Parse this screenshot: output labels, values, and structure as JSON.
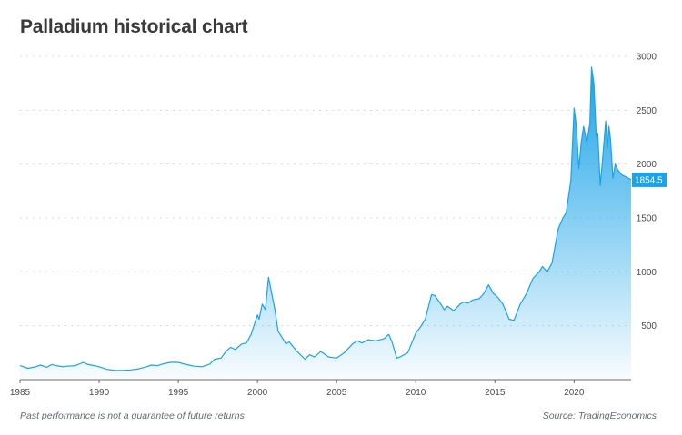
{
  "header": {
    "title": "Palladium historical chart"
  },
  "footer": {
    "disclaimer": "Past performance is not a guarantee of future returns",
    "source": "Source: TradingEconomics"
  },
  "colors": {
    "line": "#1aa3e8",
    "fill_top": "#1aa3e8",
    "grid": "#d5d8dc",
    "axis": "#6c6c6c",
    "last_value_bg": "#1aa3e8"
  },
  "chart_data": {
    "type": "area",
    "title": "Palladium historical chart",
    "xlabel": "",
    "ylabel": "",
    "xlim": [
      1985,
      2023.6
    ],
    "ylim": [
      0,
      3000
    ],
    "x_ticks": [
      "1985",
      "1990",
      "1995",
      "2000",
      "2005",
      "2010",
      "2015",
      "2020"
    ],
    "y_ticks": [
      "500",
      "1000",
      "1500",
      "2000",
      "2500",
      "3000"
    ],
    "grid": true,
    "legend": "none",
    "last_value_label": "1854.5",
    "series": [
      {
        "x": [
          1985.0,
          1985.5,
          1986.0,
          1986.3,
          1986.7,
          1987.0,
          1987.3,
          1987.7,
          1988.0,
          1988.5,
          1989.0,
          1989.3,
          1989.7,
          1990.0,
          1990.5,
          1991.0,
          1991.5,
          1992.0,
          1992.5,
          1993.0,
          1993.3,
          1993.7,
          1994.0,
          1994.5,
          1995.0,
          1995.5,
          1996.0,
          1996.5,
          1997.0,
          1997.3,
          1997.7,
          1998.0,
          1998.3,
          1998.6,
          1999.0,
          1999.3,
          1999.6,
          2000.0,
          2000.1,
          2000.3,
          2000.5,
          2000.7,
          2000.9,
          2001.1,
          2001.3,
          2001.6,
          2001.8,
          2002.0,
          2002.5,
          2003.0,
          2003.3,
          2003.6,
          2004.0,
          2004.2,
          2004.5,
          2005.0,
          2005.5,
          2006.0,
          2006.3,
          2006.6,
          2007.0,
          2007.5,
          2008.0,
          2008.3,
          2008.5,
          2008.8,
          2009.0,
          2009.5,
          2010.0,
          2010.3,
          2010.6,
          2011.0,
          2011.2,
          2011.5,
          2011.8,
          2012.0,
          2012.4,
          2012.8,
          2013.0,
          2013.3,
          2013.6,
          2014.0,
          2014.3,
          2014.6,
          2014.9,
          2015.2,
          2015.5,
          2015.9,
          2016.2,
          2016.6,
          2017.0,
          2017.4,
          2017.8,
          2018.0,
          2018.3,
          2018.6,
          2019.0,
          2019.3,
          2019.5,
          2019.8,
          2020.0,
          2020.15,
          2020.3,
          2020.45,
          2020.6,
          2020.8,
          2021.0,
          2021.1,
          2021.25,
          2021.4,
          2021.5,
          2021.65,
          2021.8,
          2022.0,
          2022.1,
          2022.2,
          2022.3,
          2022.45,
          2022.6,
          2022.75,
          2023.0,
          2023.3,
          2023.6
        ],
        "y": [
          130,
          105,
          120,
          135,
          115,
          140,
          130,
          120,
          125,
          130,
          160,
          140,
          130,
          120,
          95,
          85,
          85,
          90,
          100,
          120,
          135,
          130,
          145,
          160,
          160,
          140,
          125,
          120,
          145,
          190,
          200,
          260,
          300,
          280,
          330,
          340,
          420,
          600,
          560,
          700,
          650,
          950,
          800,
          650,
          450,
          380,
          330,
          350,
          260,
          190,
          230,
          210,
          260,
          240,
          210,
          200,
          250,
          330,
          360,
          340,
          370,
          360,
          380,
          420,
          350,
          200,
          210,
          250,
          430,
          490,
          560,
          790,
          780,
          720,
          650,
          680,
          640,
          700,
          720,
          710,
          740,
          750,
          800,
          880,
          800,
          760,
          700,
          560,
          550,
          700,
          800,
          940,
          1000,
          1050,
          1000,
          1080,
          1400,
          1500,
          1550,
          1850,
          2520,
          2350,
          1960,
          2200,
          2350,
          2200,
          2380,
          2900,
          2750,
          2250,
          2280,
          1800,
          2050,
          2400,
          2150,
          2350,
          2230,
          1870,
          2000,
          1950,
          1900,
          1880,
          1854.5
        ]
      }
    ]
  }
}
